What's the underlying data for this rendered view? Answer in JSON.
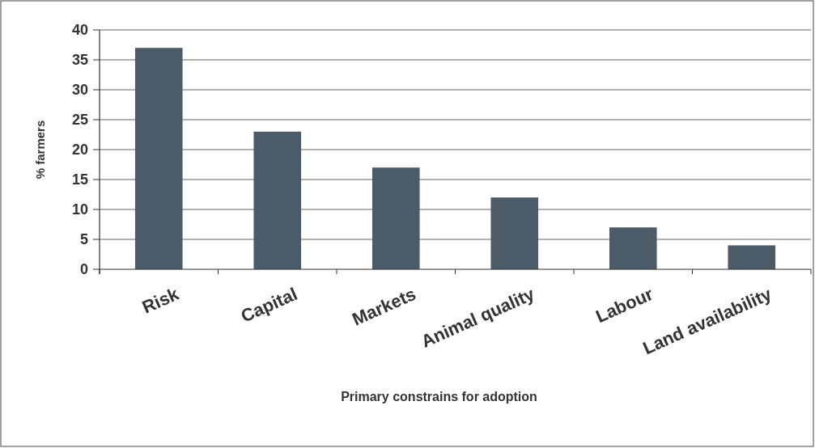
{
  "chart_data": {
    "type": "bar",
    "xlabel": "Primary constrains for adoption",
    "ylabel": "% farmers",
    "categories": [
      "Risk",
      "Capital",
      "Markets",
      "Animal quality",
      "Labour",
      "Land availability"
    ],
    "values": [
      37,
      23,
      17,
      12,
      7,
      4
    ],
    "color": "#4b5b67",
    "ylim": [
      0,
      40
    ],
    "yticks": [
      0,
      5,
      10,
      15,
      20,
      25,
      30,
      35,
      40
    ],
    "grid": "y"
  }
}
